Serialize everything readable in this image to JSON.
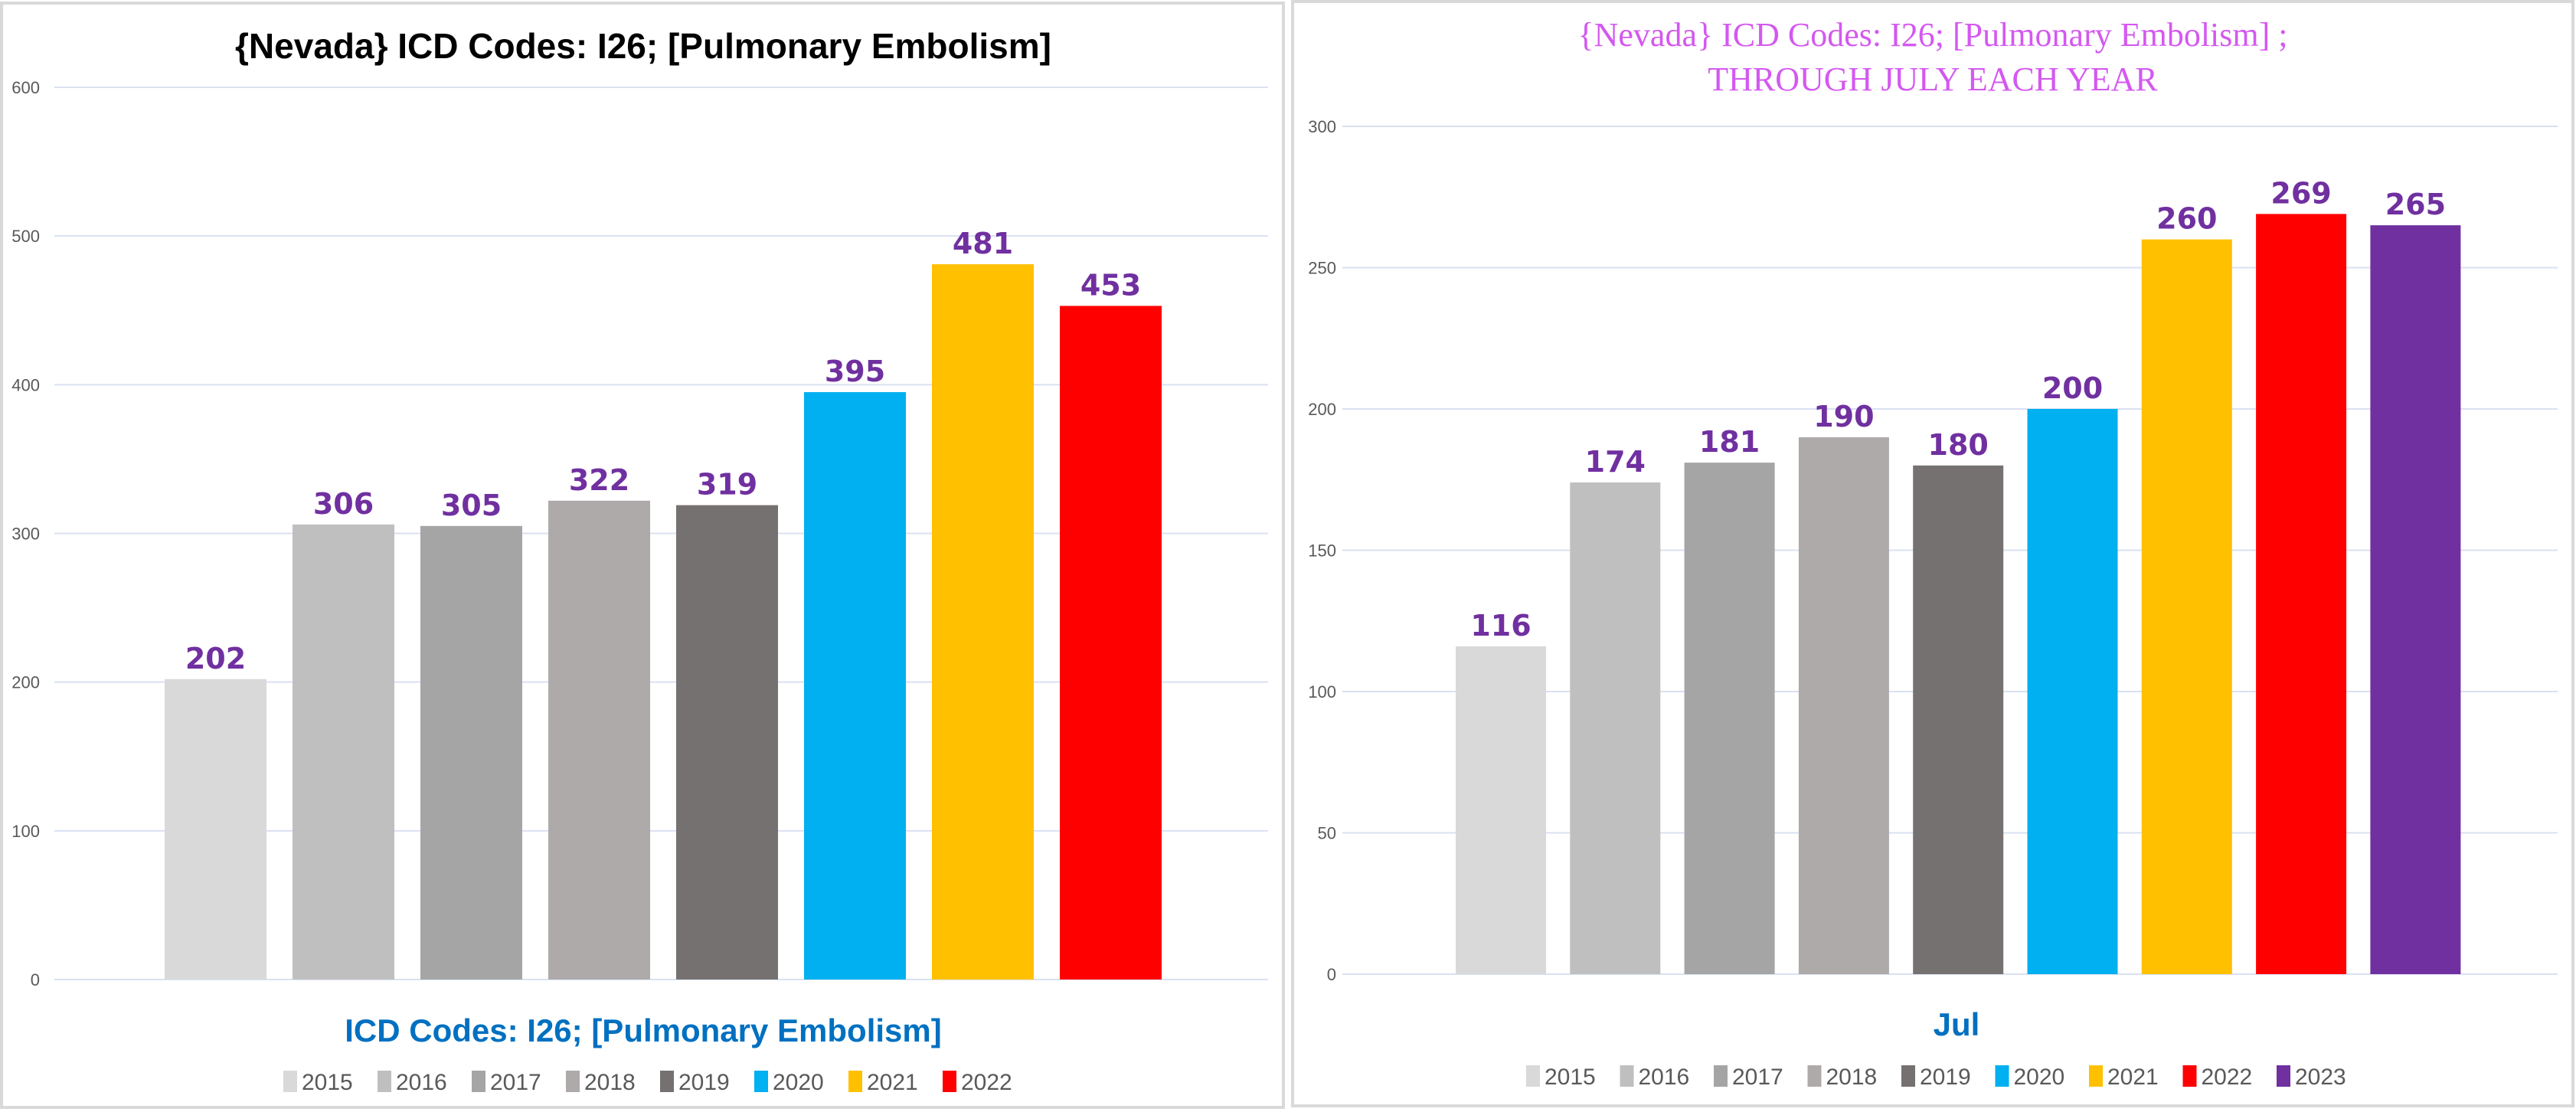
{
  "colors": {
    "2015": "#d9d9d9",
    "2016": "#bfbfbf",
    "2017": "#a5a5a5",
    "2018": "#aeaaaa",
    "2019": "#767171",
    "2020": "#00b0f0",
    "2021": "#ffc000",
    "2022": "#ff0000",
    "2023": "#7030a0",
    "data_label": "#7030a0",
    "title_right": "#d458f0",
    "axis_title": "#0070c0"
  },
  "chart_data": [
    {
      "type": "bar",
      "title": "{Nevada}  ICD Codes: I26;  [Pulmonary Embolism]",
      "xlabel": "ICD Codes: I26;  [Pulmonary Embolism]",
      "ylabel": "",
      "ylim": [
        0,
        600
      ],
      "yticks": [
        "0",
        "100",
        "200",
        "300",
        "400",
        "500",
        "600"
      ],
      "grid": true,
      "legend_position": "bottom",
      "categories": [
        "2015",
        "2016",
        "2017",
        "2018",
        "2019",
        "2020",
        "2021",
        "2022"
      ],
      "values": [
        202,
        306,
        305,
        322,
        319,
        395,
        481,
        453
      ]
    },
    {
      "type": "bar",
      "title": "{Nevada}  ICD Codes: I26;  [Pulmonary Embolism] ;",
      "subtitle": "THROUGH JULY EACH YEAR",
      "xlabel": "Jul",
      "ylabel": "",
      "ylim": [
        0,
        300
      ],
      "yticks": [
        "0",
        "50",
        "100",
        "150",
        "200",
        "250",
        "300"
      ],
      "grid": true,
      "legend_position": "bottom",
      "categories": [
        "2015",
        "2016",
        "2017",
        "2018",
        "2019",
        "2020",
        "2021",
        "2022",
        "2023"
      ],
      "values": [
        116,
        174,
        181,
        190,
        180,
        200,
        260,
        269,
        265
      ]
    }
  ]
}
